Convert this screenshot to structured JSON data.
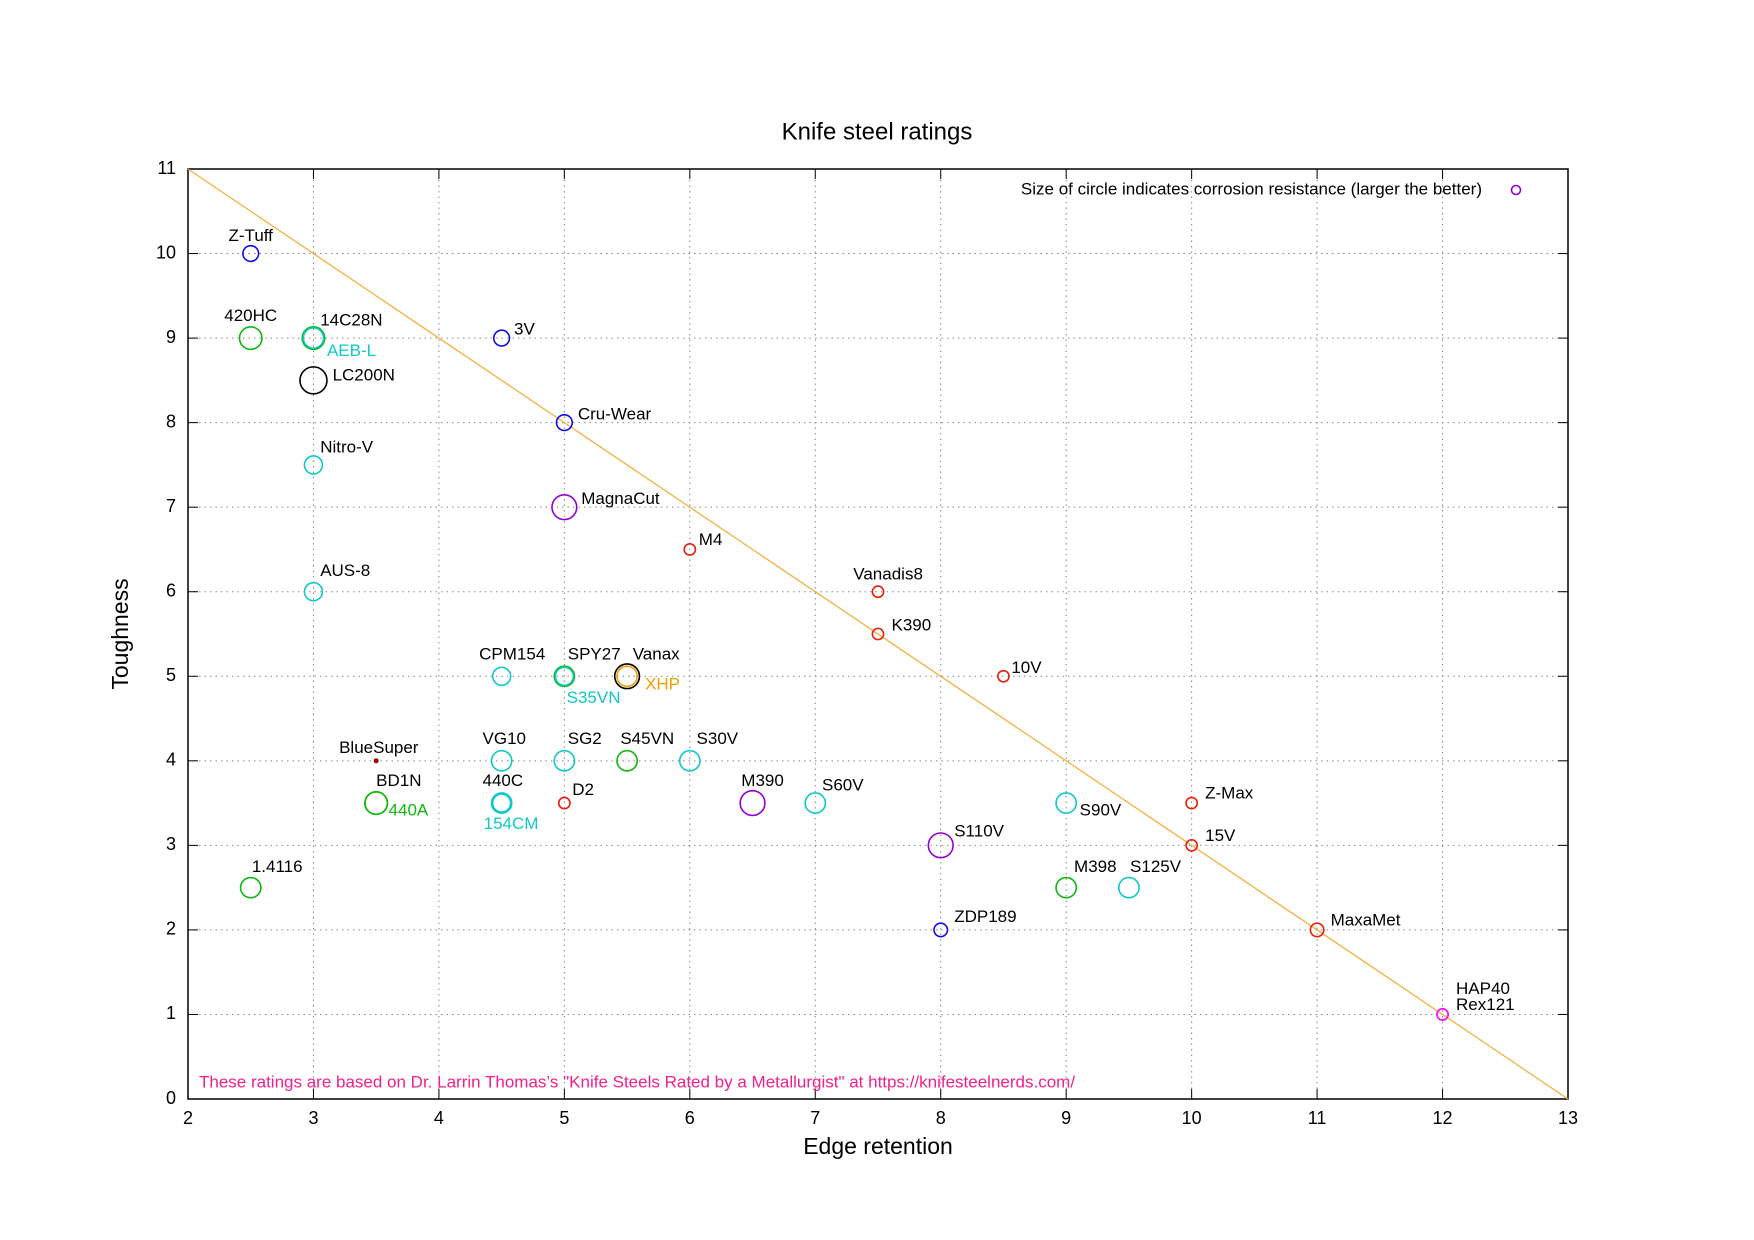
{
  "chart_data": {
    "type": "scatter",
    "title": "Knife steel ratings",
    "xlabel": "Edge retention",
    "ylabel": "Toughness",
    "xlim": [
      2,
      13
    ],
    "ylim": [
      0,
      11
    ],
    "xticks": [
      2,
      3,
      4,
      5,
      6,
      7,
      8,
      9,
      10,
      11,
      12,
      13
    ],
    "yticks": [
      0,
      1,
      2,
      3,
      4,
      5,
      6,
      7,
      8,
      9,
      10,
      11
    ],
    "grid": true,
    "legend": {
      "label": "Size of circle indicates corrosion resistance (larger the better)",
      "color": "#9400d3",
      "position": "upper right",
      "size": 4
    },
    "annotation": {
      "text": "These ratings are based on Dr. Larrin Thomas’s \"Knife Steels Rated by a Metallurgist\" at https://knifesteelnerds.com/",
      "color": "#f0208c"
    },
    "reference_line": {
      "x": [
        2,
        13
      ],
      "y": [
        11,
        0
      ],
      "color": "#f5b041"
    },
    "points": [
      {
        "label": "Z-Tuff",
        "x": 2.5,
        "y": 10,
        "size": 7,
        "color": "#1010e0"
      },
      {
        "label": "420HC",
        "x": 2.5,
        "y": 9,
        "size": 10,
        "color": "#10b810"
      },
      {
        "label": "14C28N",
        "x": 3,
        "y": 9,
        "size": 10,
        "color": "#10b810"
      },
      {
        "label": "AEB-L",
        "x": 3,
        "y": 9,
        "size": 9,
        "color": "#10c8c8",
        "label_color": "#10c8c8"
      },
      {
        "label": "LC200N",
        "x": 3,
        "y": 8.5,
        "size": 12,
        "color": "#000000"
      },
      {
        "label": "3V",
        "x": 4.5,
        "y": 9,
        "size": 7,
        "color": "#1010e0"
      },
      {
        "label": "Cru-Wear",
        "x": 5,
        "y": 8,
        "size": 7,
        "color": "#1010e0"
      },
      {
        "label": "Nitro-V",
        "x": 3,
        "y": 7.5,
        "size": 8,
        "color": "#10c8c8"
      },
      {
        "label": "MagnaCut",
        "x": 5,
        "y": 7,
        "size": 11,
        "color": "#9400d3"
      },
      {
        "label": "M4",
        "x": 6,
        "y": 6.5,
        "size": 5,
        "color": "#e8200c"
      },
      {
        "label": "Vanadis8",
        "x": 7.5,
        "y": 6,
        "size": 5,
        "color": "#e8200c"
      },
      {
        "label": "K390",
        "x": 7.5,
        "y": 5.5,
        "size": 5,
        "color": "#e8200c"
      },
      {
        "label": "10V",
        "x": 8.5,
        "y": 5,
        "size": 5,
        "color": "#e8200c"
      },
      {
        "label": "AUS-8",
        "x": 3,
        "y": 6,
        "size": 8,
        "color": "#10c8c8"
      },
      {
        "label": "CPM154",
        "x": 4.5,
        "y": 5,
        "size": 8,
        "color": "#10c8c8"
      },
      {
        "label": "SPY27",
        "x": 5,
        "y": 5,
        "size": 9,
        "color": "#10b810"
      },
      {
        "label": "S35VN",
        "x": 5,
        "y": 5,
        "size": 8,
        "color": "#10c8c8",
        "label_color": "#10c8c8"
      },
      {
        "label": "Vanax",
        "x": 5.5,
        "y": 5,
        "size": 11,
        "color": "#000000"
      },
      {
        "label": "XHP",
        "x": 5.5,
        "y": 5,
        "size": 9,
        "color": "#f0a000",
        "label_color": "#f0a000"
      },
      {
        "label": "BlueSuper",
        "x": 3.5,
        "y": 4,
        "size": 1.5,
        "color": "#a00000"
      },
      {
        "label": "VG10",
        "x": 4.5,
        "y": 4,
        "size": 9,
        "color": "#10c8c8"
      },
      {
        "label": "SG2",
        "x": 5,
        "y": 4,
        "size": 9,
        "color": "#10c8c8"
      },
      {
        "label": "S45VN",
        "x": 5.5,
        "y": 4,
        "size": 9,
        "color": "#10b810"
      },
      {
        "label": "S30V",
        "x": 6,
        "y": 4,
        "size": 9,
        "color": "#10c8c8"
      },
      {
        "label": "BD1N",
        "x": 3.5,
        "y": 3.5,
        "size": 10,
        "color": "#10b810"
      },
      {
        "label": "440A",
        "x": 3.5,
        "y": 3.5,
        "size": 10,
        "color": "#10b810",
        "label_color": "#10b810"
      },
      {
        "label": "440C",
        "x": 4.5,
        "y": 3.5,
        "size": 9,
        "color": "#10c8c8"
      },
      {
        "label": "154CM",
        "x": 4.5,
        "y": 3.5,
        "size": 8,
        "color": "#10c8c8",
        "label_color": "#10c8c8"
      },
      {
        "label": "D2",
        "x": 5,
        "y": 3.5,
        "size": 5,
        "color": "#e8200c"
      },
      {
        "label": "M390",
        "x": 6.5,
        "y": 3.5,
        "size": 11,
        "color": "#9400d3"
      },
      {
        "label": "S60V",
        "x": 7,
        "y": 3.5,
        "size": 9,
        "color": "#10c8c8"
      },
      {
        "label": "S90V",
        "x": 9,
        "y": 3.5,
        "size": 9,
        "color": "#10c8c8"
      },
      {
        "label": "Z-Max",
        "x": 10,
        "y": 3.5,
        "size": 5,
        "color": "#e8200c"
      },
      {
        "label": "S110V",
        "x": 8,
        "y": 3,
        "size": 11,
        "color": "#9400d3"
      },
      {
        "label": "15V",
        "x": 10,
        "y": 3,
        "size": 5,
        "color": "#e8200c"
      },
      {
        "label": "1.4116",
        "x": 2.5,
        "y": 2.5,
        "size": 9,
        "color": "#10b810"
      },
      {
        "label": "M398",
        "x": 9,
        "y": 2.5,
        "size": 9,
        "color": "#10b810"
      },
      {
        "label": "S125V",
        "x": 9.5,
        "y": 2.5,
        "size": 9,
        "color": "#10c8c8"
      },
      {
        "label": "ZDP189",
        "x": 8,
        "y": 2,
        "size": 6,
        "color": "#1010e0"
      },
      {
        "label": "MaxaMet",
        "x": 11,
        "y": 2,
        "size": 6,
        "color": "#e8200c"
      },
      {
        "label": "HAP40",
        "x": 12,
        "y": 1,
        "size": 5,
        "color": "#ff10ff"
      },
      {
        "label": "Rex121",
        "x": 12,
        "y": 1,
        "size": 5,
        "color": "#ff10ff"
      }
    ]
  }
}
